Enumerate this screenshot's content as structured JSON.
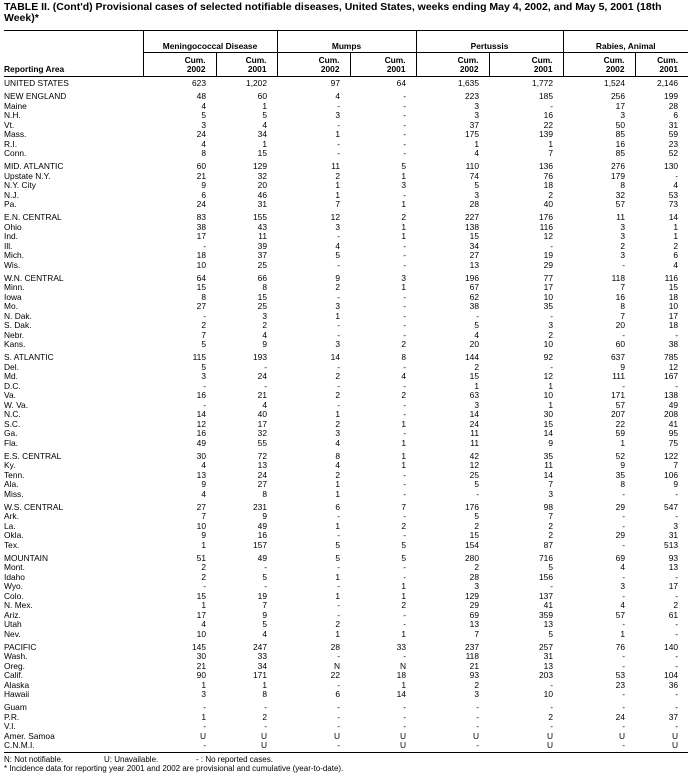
{
  "title": "TABLE II. (Cont'd) Provisional cases of selected notifiable diseases, United States, weeks ending May 4, 2002, and May 5, 2001 (18th Week)*",
  "header": {
    "area_label": "Reporting Area",
    "groups": [
      "Meningococcal Disease",
      "Mumps",
      "Pertussis",
      "Rabies, Animal"
    ],
    "cols": [
      "Cum. 2002",
      "Cum. 2001",
      "Cum. 2002",
      "Cum. 2001",
      "Cum. 2002",
      "Cum. 2001",
      "Cum. 2002",
      "Cum. 2001"
    ]
  },
  "groups": [
    [
      [
        "UNITED STATES",
        "623",
        "1,202",
        "97",
        "64",
        "1,635",
        "1,772",
        "1,524",
        "2,146"
      ]
    ],
    [
      [
        "NEW ENGLAND",
        "48",
        "60",
        "4",
        "-",
        "223",
        "185",
        "256",
        "199"
      ],
      [
        "Maine",
        "4",
        "1",
        "-",
        "-",
        "3",
        "-",
        "17",
        "28"
      ],
      [
        "N.H.",
        "5",
        "5",
        "3",
        "-",
        "3",
        "16",
        "3",
        "6"
      ],
      [
        "Vt.",
        "3",
        "4",
        "-",
        "-",
        "37",
        "22",
        "50",
        "31"
      ],
      [
        "Mass.",
        "24",
        "34",
        "1",
        "-",
        "175",
        "139",
        "85",
        "59"
      ],
      [
        "R.I.",
        "4",
        "1",
        "-",
        "-",
        "1",
        "1",
        "16",
        "23"
      ],
      [
        "Conn.",
        "8",
        "15",
        "-",
        "-",
        "4",
        "7",
        "85",
        "52"
      ]
    ],
    [
      [
        "MID. ATLANTIC",
        "60",
        "129",
        "11",
        "5",
        "110",
        "136",
        "276",
        "130"
      ],
      [
        "Upstate N.Y.",
        "21",
        "32",
        "2",
        "1",
        "74",
        "76",
        "179",
        "-"
      ],
      [
        "N.Y. City",
        "9",
        "20",
        "1",
        "3",
        "5",
        "18",
        "8",
        "4"
      ],
      [
        "N.J.",
        "6",
        "46",
        "1",
        "-",
        "3",
        "2",
        "32",
        "53"
      ],
      [
        "Pa.",
        "24",
        "31",
        "7",
        "1",
        "28",
        "40",
        "57",
        "73"
      ]
    ],
    [
      [
        "E.N. CENTRAL",
        "83",
        "155",
        "12",
        "2",
        "227",
        "176",
        "11",
        "14"
      ],
      [
        "Ohio",
        "38",
        "43",
        "3",
        "1",
        "138",
        "116",
        "3",
        "1"
      ],
      [
        "Ind.",
        "17",
        "11",
        "-",
        "1",
        "15",
        "12",
        "3",
        "1"
      ],
      [
        "Ill.",
        "-",
        "39",
        "4",
        "-",
        "34",
        "-",
        "2",
        "2"
      ],
      [
        "Mich.",
        "18",
        "37",
        "5",
        "-",
        "27",
        "19",
        "3",
        "6"
      ],
      [
        "Wis.",
        "10",
        "25",
        "-",
        "-",
        "13",
        "29",
        "-",
        "4"
      ]
    ],
    [
      [
        "W.N. CENTRAL",
        "64",
        "66",
        "9",
        "3",
        "196",
        "77",
        "118",
        "116"
      ],
      [
        "Minn.",
        "15",
        "8",
        "2",
        "1",
        "67",
        "17",
        "7",
        "15"
      ],
      [
        "Iowa",
        "8",
        "15",
        "-",
        "-",
        "62",
        "10",
        "16",
        "18"
      ],
      [
        "Mo.",
        "27",
        "25",
        "3",
        "-",
        "38",
        "35",
        "8",
        "10"
      ],
      [
        "N. Dak.",
        "-",
        "3",
        "1",
        "-",
        "-",
        "-",
        "7",
        "17"
      ],
      [
        "S. Dak.",
        "2",
        "2",
        "-",
        "-",
        "5",
        "3",
        "20",
        "18"
      ],
      [
        "Nebr.",
        "7",
        "4",
        "-",
        "-",
        "4",
        "2",
        "-",
        "-"
      ],
      [
        "Kans.",
        "5",
        "9",
        "3",
        "2",
        "20",
        "10",
        "60",
        "38"
      ]
    ],
    [
      [
        "S. ATLANTIC",
        "115",
        "193",
        "14",
        "8",
        "144",
        "92",
        "637",
        "785"
      ],
      [
        "Del.",
        "5",
        "-",
        "-",
        "-",
        "2",
        "-",
        "9",
        "12"
      ],
      [
        "Md.",
        "3",
        "24",
        "2",
        "4",
        "15",
        "12",
        "111",
        "167"
      ],
      [
        "D.C.",
        "-",
        "-",
        "-",
        "-",
        "1",
        "1",
        "-",
        "-"
      ],
      [
        "Va.",
        "16",
        "21",
        "2",
        "2",
        "63",
        "10",
        "171",
        "138"
      ],
      [
        "W. Va.",
        "-",
        "4",
        "-",
        "-",
        "3",
        "1",
        "57",
        "49"
      ],
      [
        "N.C.",
        "14",
        "40",
        "1",
        "-",
        "14",
        "30",
        "207",
        "208"
      ],
      [
        "S.C.",
        "12",
        "17",
        "2",
        "1",
        "24",
        "15",
        "22",
        "41"
      ],
      [
        "Ga.",
        "16",
        "32",
        "3",
        "-",
        "11",
        "14",
        "59",
        "95"
      ],
      [
        "Fla.",
        "49",
        "55",
        "4",
        "1",
        "11",
        "9",
        "1",
        "75"
      ]
    ],
    [
      [
        "E.S. CENTRAL",
        "30",
        "72",
        "8",
        "1",
        "42",
        "35",
        "52",
        "122"
      ],
      [
        "Ky.",
        "4",
        "13",
        "4",
        "1",
        "12",
        "11",
        "9",
        "7"
      ],
      [
        "Tenn.",
        "13",
        "24",
        "2",
        "-",
        "25",
        "14",
        "35",
        "106"
      ],
      [
        "Ala.",
        "9",
        "27",
        "1",
        "-",
        "5",
        "7",
        "8",
        "9"
      ],
      [
        "Miss.",
        "4",
        "8",
        "1",
        "-",
        "-",
        "3",
        "-",
        "-"
      ]
    ],
    [
      [
        "W.S. CENTRAL",
        "27",
        "231",
        "6",
        "7",
        "176",
        "98",
        "29",
        "547"
      ],
      [
        "Ark.",
        "7",
        "9",
        "-",
        "-",
        "5",
        "7",
        "-",
        "-"
      ],
      [
        "La.",
        "10",
        "49",
        "1",
        "2",
        "2",
        "2",
        "-",
        "3"
      ],
      [
        "Okla.",
        "9",
        "16",
        "-",
        "-",
        "15",
        "2",
        "29",
        "31"
      ],
      [
        "Tex.",
        "1",
        "157",
        "5",
        "5",
        "154",
        "87",
        "-",
        "513"
      ]
    ],
    [
      [
        "MOUNTAIN",
        "51",
        "49",
        "5",
        "5",
        "280",
        "716",
        "69",
        "93"
      ],
      [
        "Mont.",
        "2",
        "-",
        "-",
        "-",
        "2",
        "5",
        "4",
        "13"
      ],
      [
        "Idaho",
        "2",
        "5",
        "1",
        "-",
        "28",
        "156",
        "-",
        "-"
      ],
      [
        "Wyo.",
        "-",
        "-",
        "-",
        "1",
        "3",
        "-",
        "3",
        "17"
      ],
      [
        "Colo.",
        "15",
        "19",
        "1",
        "1",
        "129",
        "137",
        "-",
        "-"
      ],
      [
        "N. Mex.",
        "1",
        "7",
        "-",
        "2",
        "29",
        "41",
        "4",
        "2"
      ],
      [
        "Ariz.",
        "17",
        "9",
        "-",
        "-",
        "69",
        "359",
        "57",
        "61"
      ],
      [
        "Utah",
        "4",
        "5",
        "2",
        "-",
        "13",
        "13",
        "-",
        "-"
      ],
      [
        "Nev.",
        "10",
        "4",
        "1",
        "1",
        "7",
        "5",
        "1",
        "-"
      ]
    ],
    [
      [
        "PACIFIC",
        "145",
        "247",
        "28",
        "33",
        "237",
        "257",
        "76",
        "140"
      ],
      [
        "Wash.",
        "30",
        "33",
        "-",
        "-",
        "118",
        "31",
        "-",
        "-"
      ],
      [
        "Oreg.",
        "21",
        "34",
        "N",
        "N",
        "21",
        "13",
        "-",
        "-"
      ],
      [
        "Calif.",
        "90",
        "171",
        "22",
        "18",
        "93",
        "203",
        "53",
        "104"
      ],
      [
        "Alaska",
        "1",
        "1",
        "-",
        "1",
        "2",
        "-",
        "23",
        "36"
      ],
      [
        "Hawaii",
        "3",
        "8",
        "6",
        "14",
        "3",
        "10",
        "-",
        "-"
      ]
    ],
    [
      [
        "Guam",
        "-",
        "-",
        "-",
        "-",
        "-",
        "-",
        "-",
        "-"
      ],
      [
        "P.R.",
        "1",
        "2",
        "-",
        "-",
        "-",
        "2",
        "24",
        "37"
      ],
      [
        "V.I.",
        "-",
        "-",
        "-",
        "-",
        "-",
        "-",
        "-",
        "-"
      ],
      [
        "Amer. Samoa",
        "U",
        "U",
        "U",
        "U",
        "U",
        "U",
        "U",
        "U"
      ],
      [
        "C.N.M.I.",
        "-",
        "U",
        "-",
        "U",
        "-",
        "U",
        "-",
        "U"
      ]
    ]
  ],
  "footnotes": {
    "legend_n": "N: Not notifiable.",
    "legend_u": "U: Unavailable.",
    "legend_dash": "- : No reported cases.",
    "asterisk": "* Incidence data for reporting year 2001 and 2002 are provisional and cumulative (year-to-date)."
  }
}
